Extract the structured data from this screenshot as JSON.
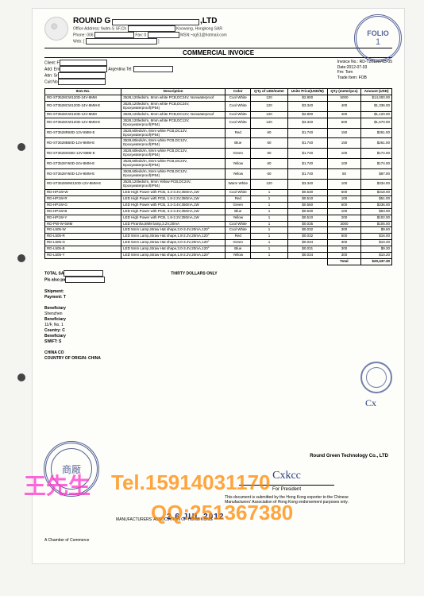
{
  "header": {
    "company_prefix": "ROUND G",
    "company_suffix": ",LTD",
    "addr1": "Office Address: fwdm-S SF,Ch",
    "addr2": "Koowong, Hongkong SAR",
    "phone_lbl": "Phone: 006",
    "fax_lbl": "Fax: 0",
    "email_suffix": "MSN:~og51@hotmail.com",
    "web_lbl": "Web: [",
    "title": "COMMERCIAL INVOICE"
  },
  "meta": {
    "client_lbl": "Client: F",
    "add_lbl": "Add: Em",
    "attn_lbl": "Attn: Sr",
    "cuit_lbl": "Cuit No",
    "argentina": "Argentina  Tel:",
    "invoice_no_lbl": "Invoice No.:",
    "invoice_no": "RD-T20120703-05",
    "date_lbl": "Date:",
    "date": "2012-07-03",
    "fm_lbl": "Fm: Tom",
    "trade_lbl": "Trade Item:",
    "trade": "FOB"
  },
  "columns": [
    "Item No.",
    "Description",
    "Color",
    "Q'ty of LED/meter",
    "Unite Price(USD/M)",
    "Q'ty (meter/pcs)",
    "Amount (USD)"
  ],
  "rows": [
    [
      "RD-ST3528CW120D-24V-8MM",
      "3528,120leds/m, 8mm white PCB,DC24V, Nonwaterproof",
      "Cool White",
      "120",
      "$2.800",
      "5000",
      "$14,000.00"
    ],
    [
      "RD-ST3528CW120D-24V-8MM-E",
      "3528,120leds/m, 8mm white PCB,DC24V, Epoxywaterproof(IP54)",
      "Cool White",
      "120",
      "$3.340",
      "400",
      "$1,336.00"
    ],
    [
      "RD-ST3528CW120D-12V-8MM",
      "3528,120leds/m, 8mm white PCB,DC12V, Nonwaterproof",
      "Cool White",
      "120",
      "$2.800",
      "400",
      "$1,120.00"
    ],
    [
      "RD-ST3528CW120D-12V-8MM-E",
      "3528,120leds/m, 8mm white PCB,DC12V, Epoxywaterproof(IP54)",
      "Cool White",
      "120",
      "$3.340",
      "500",
      "$1,670.00"
    ],
    [
      "RD-ST3528R60D-12V-8MM-E",
      "3528,60leds/m, 8mm white PCB,DC12V, Epoxywaterproof(IP54)",
      "Red",
      "60",
      "$1.740",
      "150",
      "$261.00"
    ],
    [
      "RD-ST3528B60D-12V-8MM-E",
      "3528,60leds/m, 8mm white PCB,DC12V, Epoxywaterproof(IP54)",
      "Blue",
      "60",
      "$1.740",
      "150",
      "$261.00"
    ],
    [
      "RD-ST3528G60D-12V-8MM-E",
      "3528,60leds/m, 8mm white PCB,DC12V, Epoxywaterproof(IP54)",
      "Green",
      "60",
      "$1.740",
      "100",
      "$174.00"
    ],
    [
      "RD-ST3528Y60D-24V-8MM-E",
      "3528,60leds/m, 8mm white PCB,DC24V, Epoxywaterproof(IP54)",
      "Yellow",
      "60",
      "$1.740",
      "100",
      "$174.00"
    ],
    [
      "RD-ST3528Y60D-12V-8MM-E",
      "3528,60leds/m, 8mm white PCB,DC12V, Epoxywaterproof(IP54)",
      "Yellow",
      "60",
      "$1.740",
      "50",
      "$87.00"
    ],
    [
      "RD-ST3528WW120D-12V-8MM-E",
      "3528,120leds/m, 8mm Yellow PCB,DC24V, Epoxywaterproof(IP54)",
      "Warm White",
      "120",
      "$3.340",
      "100",
      "$334.00"
    ],
    [
      "RD-HP1W-W",
      "LED High Power with PCB, 3.2-3.4V,350mA,1W",
      "Cool White",
      "1",
      "$0.530",
      "600",
      "$318.00"
    ],
    [
      "RD-HP1W-R",
      "LED High Power with PCB, 1.8-2.2V,350mA,1W",
      "Red",
      "1",
      "$0.510",
      "100",
      "$51.00"
    ],
    [
      "RD-HP1W-G",
      "LED High Power with PCB, 3.2-3.4V,350mA,1W",
      "Green",
      "1",
      "$0.560",
      "600",
      "$336.00"
    ],
    [
      "RD-HP1W-B",
      "LED High Power with PCB, 3.2-3.4V,350mA,1W",
      "Blue",
      "1",
      "$0.530",
      "100",
      "$53.00"
    ],
    [
      "RD-HP1W-Y",
      "LED High Power with PCB, 1.8-2.2V,350mA,1W",
      "Yellow",
      "1",
      "$0.510",
      "200",
      "$102.00"
    ],
    [
      "RD-PW-W-5MM",
      "LED Piranha,5MM lamp,3.2V,20mA",
      "Cool White",
      "1",
      "$0.035",
      "3000",
      "$105.00"
    ],
    [
      "RD-L505-W",
      "LED 5mm Lamp,Straw Hat shape,3.0-3.4V,20mA,120°",
      "Cool White",
      "1",
      "$0.032",
      "300",
      "$9.60"
    ],
    [
      "RD-L505-R",
      "LED 5mm Lamp,Straw Hat shape,1.8-2.2V,20mA,120°",
      "Red",
      "1",
      "$0.032",
      "500",
      "$16.00"
    ],
    [
      "RD-L505-G",
      "LED 5mm Lamp,Straw Hat shape,3.0-3.4V,20mA,120°",
      "Green",
      "1",
      "$0.034",
      "300",
      "$10.20"
    ],
    [
      "RD-L505-B",
      "LED 5mm Lamp,Straw Hat shape,3.0-3.4V,20mA,120°",
      "Blue",
      "1",
      "$0.031",
      "300",
      "$9.30"
    ],
    [
      "RD-L505-Y",
      "LED 5mm Lamp,Straw Hat shape,1.8-2.2V,20mA,120°",
      "Yellow",
      "1",
      "$0.034",
      "300",
      "$10.20"
    ]
  ],
  "total_lbl": "Total",
  "total_amt": "$20,437.30",
  "bottom": {
    "total_say": "TOTAL SA",
    "pls": "Pls also pa",
    "thirty": "THIRTY DOLLARS ONLY",
    "shipment": "Shipment:",
    "payment": "Payment: T",
    "beneficiary": "Beneficiary",
    "shenzhen": "Shenzhen",
    "benef_acc": "Beneficiary",
    "acc": "11/F, No. 1",
    "country": "Country: C",
    "benef_bank": "Beneficiary",
    "swift": "SWIFT: S",
    "china_co": "CHINA CO",
    "coo": "COUNTRY OF ORIGIN: CHINA"
  },
  "stamps": {
    "folio_label": "FOLIO",
    "folio_num": "1",
    "assoc_chars": "商厰",
    "date_stamp": "2 6 JUL 2012",
    "company_right": "Round Green Technology Co., LTD",
    "assoc_text": "MANUFACTURERS' ASSOCIATION OF HONG KONG",
    "for_pres": "For President",
    "doc_note": "This document is submitted by the Hong Kong exporter to the Chinese Manufacturers' Association of Hong Kong endorsement purposes only.",
    "chamber": "A Chamber of Commerce"
  },
  "watermark": {
    "line1a": "王先生",
    "line1b": "Tel.15914031170",
    "line2": "QQ:251367380"
  }
}
